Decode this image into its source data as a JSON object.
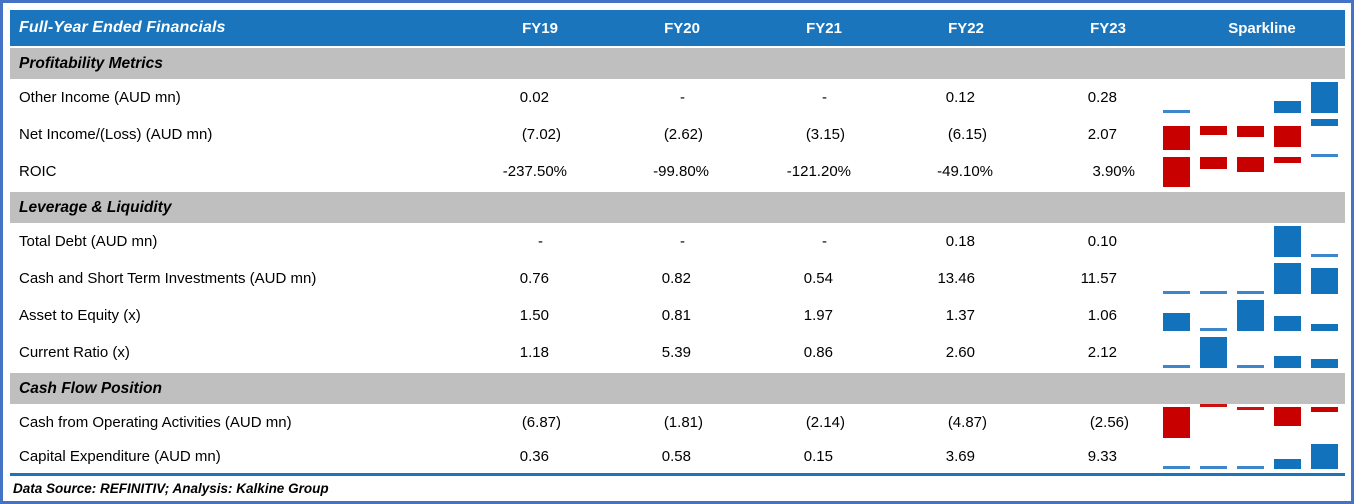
{
  "table": {
    "title": "Full-Year Ended Financials",
    "columns": [
      "FY19",
      "FY20",
      "FY21",
      "FY22",
      "FY23"
    ],
    "sparkline_header": "Sparkline",
    "sections": [
      {
        "label": "Profitability Metrics",
        "rows": [
          {
            "label": "Other Income (AUD mn)",
            "cells": [
              "0.02",
              "-",
              "-",
              "0.12",
              "0.28"
            ]
          },
          {
            "label": "Net Income/(Loss) (AUD mn)",
            "cells": [
              "(7.02)",
              "(2.62)",
              "(3.15)",
              "(6.15)",
              "2.07"
            ]
          },
          {
            "label": "ROIC",
            "cells": [
              "-237.50%",
              "-99.80%",
              "-121.20%",
              "-49.10%",
              "3.90%"
            ]
          }
        ]
      },
      {
        "label": "Leverage & Liquidity",
        "rows": [
          {
            "label": "Total Debt (AUD mn)",
            "cells": [
              "-",
              "-",
              "-",
              "0.18",
              "0.10"
            ]
          },
          {
            "label": "Cash and Short Term Investments (AUD mn)",
            "cells": [
              "0.76",
              "0.82",
              "0.54",
              "13.46",
              "11.57"
            ]
          },
          {
            "label": "Asset to Equity (x)",
            "cells": [
              "1.50",
              "0.81",
              "1.97",
              "1.37",
              "1.06"
            ]
          },
          {
            "label": "Current Ratio (x)",
            "cells": [
              "1.18",
              "5.39",
              "0.86",
              "2.60",
              "2.12"
            ]
          }
        ]
      },
      {
        "label": "Cash Flow Position",
        "rows": [
          {
            "label": "Cash from Operating Activities (AUD mn)",
            "cells": [
              "(6.87)",
              "(1.81)",
              "(2.14)",
              "(4.87)",
              "(2.56)"
            ]
          },
          {
            "label": "Capital Expenditure (AUD mn)",
            "cells": [
              "0.36",
              "0.58",
              "0.15",
              "3.69",
              "9.33"
            ]
          }
        ]
      }
    ],
    "footer": "Data Source: REFINITIV; Analysis: Kalkine Group"
  },
  "colors": {
    "header_blue": "#1B75BC",
    "section_gray": "#BFBFBF",
    "frame_blue": "#4472C4",
    "spark_positive": "#1272BC",
    "spark_positive_sliver": "#3C87CC",
    "spark_negative": "#C80000",
    "spark_negative_sliver": "#CC1111"
  },
  "chart_data": {
    "type": "table",
    "title": "Full-Year Ended Financials",
    "categories": [
      "FY19",
      "FY20",
      "FY21",
      "FY22",
      "FY23"
    ],
    "legend_position": "none",
    "sections": [
      {
        "title": "Profitability Metrics",
        "series": [
          {
            "name": "Other Income (AUD mn)",
            "values": [
              0.02,
              null,
              null,
              0.12,
              0.28
            ]
          },
          {
            "name": "Net Income/(Loss) (AUD mn)",
            "values": [
              -7.02,
              -2.62,
              -3.15,
              -6.15,
              2.07
            ]
          },
          {
            "name": "ROIC",
            "unit": "%",
            "values": [
              -237.5,
              -99.8,
              -121.2,
              -49.1,
              3.9
            ]
          }
        ]
      },
      {
        "title": "Leverage & Liquidity",
        "series": [
          {
            "name": "Total Debt (AUD mn)",
            "values": [
              null,
              null,
              null,
              0.18,
              0.1
            ]
          },
          {
            "name": "Cash and Short Term Investments (AUD mn)",
            "values": [
              0.76,
              0.82,
              0.54,
              13.46,
              11.57
            ]
          },
          {
            "name": "Asset to Equity (x)",
            "values": [
              1.5,
              0.81,
              1.97,
              1.37,
              1.06
            ]
          },
          {
            "name": "Current Ratio (x)",
            "values": [
              1.18,
              5.39,
              0.86,
              2.6,
              2.12
            ]
          }
        ]
      },
      {
        "title": "Cash Flow Position",
        "series": [
          {
            "name": "Cash from Operating Activities (AUD mn)",
            "values": [
              -6.87,
              -1.81,
              -2.14,
              -4.87,
              -2.56
            ]
          },
          {
            "name": "Capital Expenditure (AUD mn)",
            "values": [
              0.36,
              0.58,
              0.15,
              3.69,
              9.33
            ]
          }
        ]
      }
    ],
    "sparkline": {
      "type": "bar",
      "scaling": "per-row min-to-max (Excel auto axis)",
      "positive_color": "#1272BC",
      "negative_color": "#C80000"
    }
  }
}
